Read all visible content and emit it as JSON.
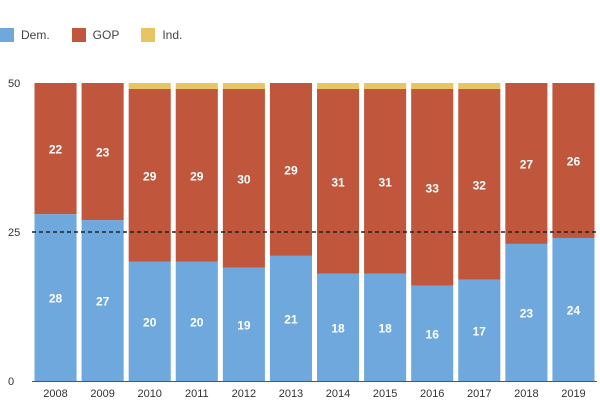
{
  "chart_data": {
    "type": "bar",
    "stacked": true,
    "title": "",
    "xlabel": "",
    "ylabel": "",
    "categories": [
      "2008",
      "2009",
      "2010",
      "2011",
      "2012",
      "2013",
      "2014",
      "2015",
      "2016",
      "2017",
      "2018",
      "2019"
    ],
    "series": [
      {
        "name": "Dem.",
        "color": "#6fa8dc",
        "values": [
          28,
          27,
          20,
          20,
          19,
          21,
          18,
          18,
          16,
          17,
          23,
          24
        ]
      },
      {
        "name": "GOP",
        "color": "#c0573d",
        "values": [
          22,
          23,
          29,
          29,
          30,
          29,
          31,
          31,
          33,
          32,
          27,
          26
        ]
      },
      {
        "name": "Ind.",
        "color": "#e8c462",
        "values": [
          0,
          0,
          1,
          1,
          1,
          0,
          1,
          1,
          1,
          1,
          0,
          0
        ]
      }
    ],
    "ylim": [
      0,
      50
    ],
    "yticks": [
      "0",
      "25",
      "50"
    ],
    "reference_line": {
      "value": 25,
      "style": "dashed"
    },
    "grid": false,
    "legend_position": "top-left"
  },
  "legend": {
    "items": [
      {
        "name": "Dem.",
        "color": "#6fa8dc"
      },
      {
        "name": "GOP",
        "color": "#c0573d"
      },
      {
        "name": "Ind.",
        "color": "#e8c462"
      }
    ]
  }
}
